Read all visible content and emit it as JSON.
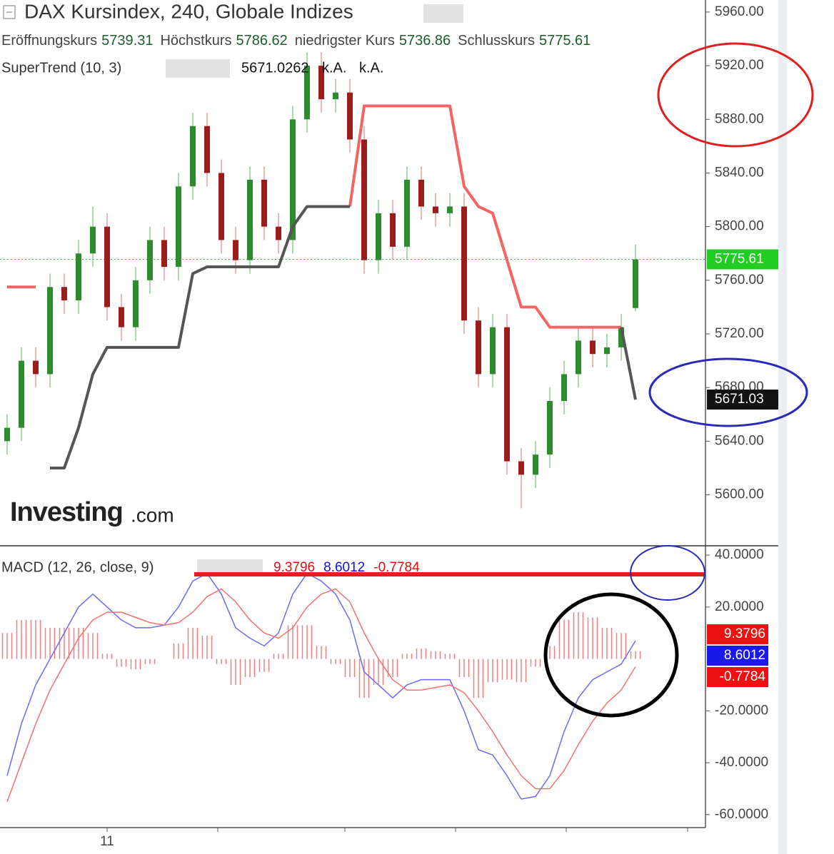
{
  "chart_data": [
    {
      "type": "candlestick",
      "title": "DAX Kursindex, 240, Globale Indizes",
      "legend": [
        {
          "label": "Eröffnungskurs",
          "value": 5739.31
        },
        {
          "label": "Höchstkurs",
          "value": 5786.62
        },
        {
          "label": "niedrigster Kurs",
          "value": 5736.86
        },
        {
          "label": "Schlusskurs",
          "value": 5775.61
        }
      ],
      "indicator": {
        "name": "SuperTrend (10, 3)",
        "value": 5671.0262,
        "extra": [
          "k.A.",
          "k.A."
        ]
      },
      "last_price_label": 5775.61,
      "supertrend_label": 5671.03,
      "watermark": [
        "Investing",
        ".com"
      ],
      "x_labels": [
        "11"
      ],
      "open": [
        5640,
        5650,
        5700,
        5690,
        5755,
        5745,
        5780,
        5800,
        5740,
        5725,
        5760,
        5790,
        5770,
        5830,
        5875,
        5840,
        5790,
        5775,
        5835,
        5800,
        5790,
        5880,
        5920,
        5895,
        5900,
        5865,
        5775,
        5810,
        5785,
        5835,
        5815,
        5810,
        5815,
        5730,
        5690,
        5725,
        5625,
        5615,
        5630,
        5670,
        5690,
        5715,
        5705,
        5710,
        5739.31
      ],
      "high": [
        5660,
        5710,
        5710,
        5765,
        5765,
        5790,
        5815,
        5810,
        5750,
        5770,
        5800,
        5800,
        5840,
        5885,
        5885,
        5850,
        5800,
        5845,
        5845,
        5810,
        5890,
        5930,
        5930,
        5910,
        5910,
        5875,
        5820,
        5820,
        5845,
        5845,
        5825,
        5825,
        5825,
        5740,
        5735,
        5735,
        5635,
        5640,
        5680,
        5700,
        5725,
        5725,
        5720,
        5735,
        5786.62
      ],
      "low": [
        5630,
        5640,
        5680,
        5680,
        5735,
        5735,
        5770,
        5730,
        5715,
        5715,
        5750,
        5760,
        5760,
        5820,
        5830,
        5780,
        5765,
        5765,
        5790,
        5780,
        5780,
        5870,
        5885,
        5885,
        5855,
        5765,
        5765,
        5775,
        5775,
        5805,
        5800,
        5800,
        5720,
        5680,
        5680,
        5615,
        5590,
        5605,
        5620,
        5660,
        5680,
        5695,
        5695,
        5700,
        5736.86
      ],
      "close": [
        5650,
        5700,
        5690,
        5755,
        5745,
        5780,
        5800,
        5740,
        5725,
        5760,
        5790,
        5770,
        5830,
        5875,
        5840,
        5790,
        5775,
        5835,
        5800,
        5790,
        5880,
        5920,
        5895,
        5900,
        5865,
        5775,
        5810,
        5785,
        5835,
        5815,
        5810,
        5815,
        5730,
        5690,
        5725,
        5625,
        5615,
        5630,
        5670,
        5690,
        5715,
        5705,
        5710,
        5725,
        5775.61
      ],
      "up_color": "#2e8b2e",
      "down_color": "#9b1c1c",
      "series": [
        {
          "color": "#f46464",
          "values": [
            5755,
            5755,
            5755,
            null,
            null,
            null,
            null,
            null,
            null,
            null,
            null,
            null,
            null,
            null,
            null,
            null,
            null,
            null,
            null,
            null,
            null,
            null,
            null,
            null,
            5815,
            5890,
            5890,
            5890,
            5890,
            5890,
            5890,
            5890,
            5830,
            5815,
            5810,
            5775,
            5740,
            5740,
            5725,
            5725,
            5725,
            5725,
            5725,
            5725,
            null
          ]
        },
        {
          "color": "#555555",
          "values": [
            null,
            null,
            null,
            5620,
            5620,
            5650,
            5690,
            5710,
            5710,
            5710,
            5710,
            5710,
            5710,
            5765,
            5770,
            5770,
            5770,
            5770,
            5770,
            5770,
            5800,
            5815,
            5815,
            5815,
            5815,
            null,
            null,
            null,
            null,
            null,
            null,
            null,
            null,
            null,
            null,
            null,
            null,
            null,
            null,
            null,
            null,
            null,
            null,
            5725,
            5671.03
          ]
        }
      ],
      "ylim": [
        5562,
        5969
      ],
      "yticks": [
        {
          "value": 5600,
          "label": "5600.00"
        },
        {
          "value": 5640,
          "label": "5640.00"
        },
        {
          "value": 5680,
          "label": "5680.00"
        },
        {
          "value": 5720,
          "label": "5720.00"
        },
        {
          "value": 5760,
          "label": "5760.00"
        },
        {
          "value": 5800,
          "label": "5800.00"
        },
        {
          "value": 5840,
          "label": "5840.00"
        },
        {
          "value": 5880,
          "label": "5880.00"
        },
        {
          "value": 5920,
          "label": "5920.00"
        },
        {
          "value": 5960,
          "label": "5960.00"
        }
      ]
    },
    {
      "type": "macd",
      "title": "MACD (12, 26, close, 9)",
      "legend_values": [
        {
          "value": 9.3796,
          "color": "#e01010"
        },
        {
          "value": 8.6012,
          "color": "#1010e0"
        },
        {
          "value": -0.7784,
          "color": "#e01010"
        }
      ],
      "histogram": {
        "color": "#f08080",
        "values": [
          10,
          15,
          15,
          12,
          12,
          12,
          10,
          2,
          -3,
          -4,
          -2,
          0,
          6,
          12,
          9,
          -2,
          -10,
          -7,
          -5,
          2,
          13,
          13,
          5,
          -2,
          -7,
          -15,
          -10,
          -7,
          2,
          4,
          3,
          2,
          -7,
          -15,
          -9,
          -8,
          -9,
          -3,
          5,
          15,
          18,
          16,
          12,
          10,
          3
        ]
      },
      "series": [
        {
          "color": "#6b6bf5",
          "values": [
            -45,
            -25,
            -10,
            0,
            10,
            20,
            25,
            20,
            15,
            12,
            12,
            13,
            20,
            30,
            33,
            25,
            12,
            8,
            5,
            10,
            25,
            33,
            30,
            25,
            15,
            -5,
            -10,
            -15,
            -10,
            -8,
            -8,
            -8,
            -20,
            -35,
            -37,
            -45,
            -54,
            -53,
            -45,
            -28,
            -15,
            -8,
            -5,
            -2,
            7
          ]
        },
        {
          "color": "#f57070",
          "values": [
            -55,
            -40,
            -25,
            -12,
            -2,
            8,
            15,
            18,
            18,
            16,
            14,
            13,
            14,
            18,
            24,
            27,
            22,
            15,
            10,
            8,
            12,
            20,
            25,
            27,
            22,
            10,
            0,
            -8,
            -12,
            -12,
            -11,
            -10,
            -13,
            -20,
            -28,
            -37,
            -45,
            -50,
            -50,
            -43,
            -33,
            -24,
            -17,
            -12,
            -3
          ]
        }
      ],
      "ylim": [
        -65,
        43.6
      ],
      "yticks": [
        {
          "value": -60,
          "label": "-60.0000"
        },
        {
          "value": -40,
          "label": "-40.0000"
        },
        {
          "value": -20,
          "label": "-20.0000"
        },
        {
          "value": 20,
          "label": "20.0000"
        },
        {
          "value": 40,
          "label": "40.0000"
        }
      ]
    }
  ]
}
